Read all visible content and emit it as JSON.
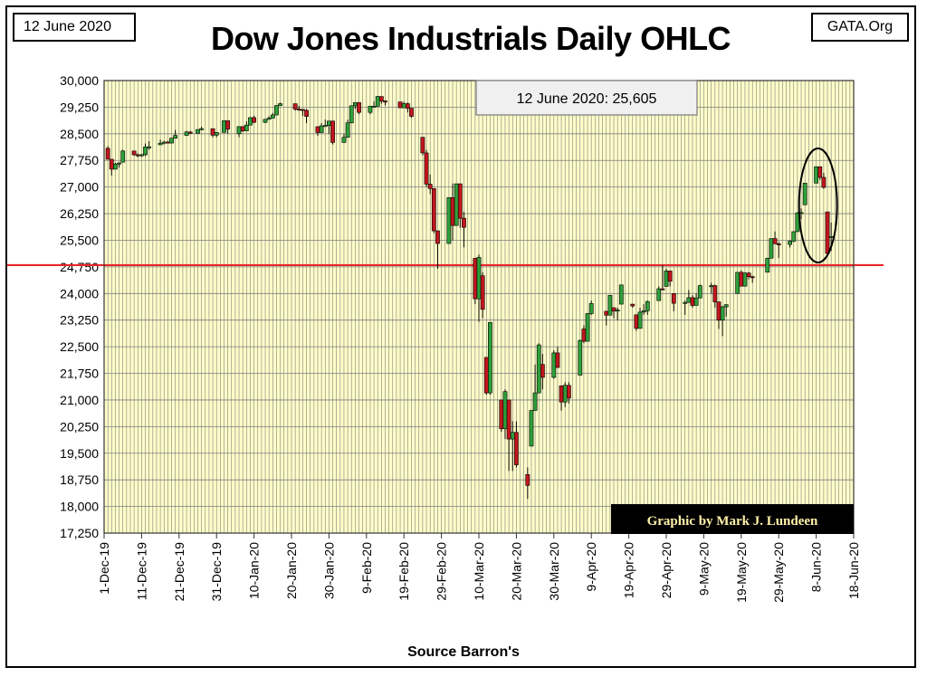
{
  "header": {
    "date_label": "12 June 2020",
    "site_label": "GATA.Org",
    "title": "Dow Jones Industrials Daily OHLC"
  },
  "annotation": {
    "value_box": "12 June 2020: 25,605",
    "credit": "Graphic by Mark J. Lundeen",
    "source": "Source Barron's"
  },
  "colors": {
    "plot_bg": "#FFFDC8",
    "grid": "#7f7f7f",
    "up": "#2e9e3a",
    "down": "#c0161d",
    "ref_line": "#e8262a",
    "credit_bg": "#000000",
    "credit_text": "#fff2a8"
  },
  "chart_data": {
    "type": "candlestick",
    "title": "Dow Jones Industrials Daily OHLC",
    "xlabel": "",
    "ylabel": "",
    "ylim": [
      17250,
      30000
    ],
    "yticks": [
      "30,000",
      "29,250",
      "28,500",
      "27,750",
      "27,000",
      "26,250",
      "25,500",
      "24,750",
      "24,000",
      "23,250",
      "22,500",
      "21,750",
      "21,000",
      "20,250",
      "19,500",
      "18,750",
      "18,000",
      "17,250"
    ],
    "xticks": [
      "1-Dec-19",
      "11-Dec-19",
      "21-Dec-19",
      "31-Dec-19",
      "10-Jan-20",
      "20-Jan-20",
      "30-Jan-20",
      "9-Feb-20",
      "19-Feb-20",
      "29-Feb-20",
      "10-Mar-20",
      "20-Mar-20",
      "30-Mar-20",
      "9-Apr-20",
      "19-Apr-20",
      "29-Apr-20",
      "9-May-20",
      "19-May-20",
      "29-May-20",
      "8-Jun-20",
      "18-Jun-20"
    ],
    "xlim": [
      "2019-12-01",
      "2020-06-18"
    ],
    "reference_line": 24800,
    "grid": true,
    "highlight": "ellipse around 4-Jun-20 to 12-Jun-20",
    "candles": [
      [
        "2019-12-02",
        28091,
        28149,
        27783,
        27783
      ],
      [
        "2019-12-03",
        27783,
        27783,
        27325,
        27503
      ],
      [
        "2019-12-04",
        27503,
        27680,
        27503,
        27650
      ],
      [
        "2019-12-05",
        27650,
        27700,
        27550,
        27677
      ],
      [
        "2019-12-06",
        27700,
        28050,
        27700,
        28015
      ],
      [
        "2019-12-09",
        28015,
        28015,
        27880,
        27909
      ],
      [
        "2019-12-10",
        27909,
        27950,
        27840,
        27881
      ],
      [
        "2019-12-11",
        27881,
        27930,
        27850,
        27911
      ],
      [
        "2019-12-12",
        27911,
        28225,
        27870,
        28132
      ],
      [
        "2019-12-13",
        28132,
        28290,
        28050,
        28135
      ],
      [
        "2019-12-16",
        28190,
        28337,
        28190,
        28235
      ],
      [
        "2019-12-17",
        28235,
        28300,
        28200,
        28267
      ],
      [
        "2019-12-18",
        28267,
        28300,
        28230,
        28239
      ],
      [
        "2019-12-19",
        28239,
        28376,
        28230,
        28376
      ],
      [
        "2019-12-20",
        28376,
        28608,
        28376,
        28455
      ],
      [
        "2019-12-23",
        28455,
        28582,
        28455,
        28551
      ],
      [
        "2019-12-24",
        28551,
        28576,
        28500,
        28515
      ],
      [
        "2019-12-26",
        28515,
        28621,
        28515,
        28621
      ],
      [
        "2019-12-27",
        28621,
        28701,
        28600,
        28645
      ],
      [
        "2019-12-30",
        28645,
        28645,
        28400,
        28462
      ],
      [
        "2019-12-31",
        28462,
        28538,
        28400,
        28538
      ],
      [
        "2020-01-02",
        28538,
        28872,
        28538,
        28868
      ],
      [
        "2020-01-03",
        28868,
        28868,
        28500,
        28634
      ],
      [
        "2020-01-06",
        28500,
        28708,
        28400,
        28703
      ],
      [
        "2020-01-07",
        28703,
        28710,
        28550,
        28583
      ],
      [
        "2020-01-08",
        28583,
        28850,
        28583,
        28745
      ],
      [
        "2020-01-09",
        28745,
        28970,
        28745,
        28956
      ],
      [
        "2020-01-10",
        28956,
        29009,
        28800,
        28824
      ],
      [
        "2020-01-13",
        28824,
        28910,
        28800,
        28907
      ],
      [
        "2020-01-14",
        28907,
        28997,
        28900,
        28940
      ],
      [
        "2020-01-15",
        28940,
        29090,
        28940,
        29030
      ],
      [
        "2020-01-16",
        29030,
        29300,
        29030,
        29297
      ],
      [
        "2020-01-17",
        29297,
        29373,
        29290,
        29348
      ],
      [
        "2020-01-21",
        29348,
        29348,
        29150,
        29196
      ],
      [
        "2020-01-22",
        29196,
        29290,
        29150,
        29186
      ],
      [
        "2020-01-23",
        29186,
        29200,
        29000,
        29160
      ],
      [
        "2020-01-24",
        29160,
        29200,
        28800,
        28990
      ],
      [
        "2020-01-27",
        28700,
        28700,
        28440,
        28535
      ],
      [
        "2020-01-28",
        28535,
        28800,
        28535,
        28723
      ],
      [
        "2020-01-29",
        28723,
        28900,
        28700,
        28734
      ],
      [
        "2020-01-30",
        28734,
        28859,
        28500,
        28859
      ],
      [
        "2020-01-31",
        28859,
        28859,
        28200,
        28256
      ],
      [
        "2020-02-03",
        28256,
        28500,
        28256,
        28400
      ],
      [
        "2020-02-04",
        28400,
        28900,
        28400,
        28807
      ],
      [
        "2020-02-05",
        28807,
        29290,
        28807,
        29290
      ],
      [
        "2020-02-06",
        29290,
        29380,
        29200,
        29379
      ],
      [
        "2020-02-07",
        29379,
        29379,
        29050,
        29103
      ],
      [
        "2020-02-10",
        29103,
        29277,
        29050,
        29276
      ],
      [
        "2020-02-11",
        29276,
        29415,
        29250,
        29276
      ],
      [
        "2020-02-12",
        29276,
        29568,
        29276,
        29551
      ],
      [
        "2020-02-13",
        29551,
        29551,
        29350,
        29424
      ],
      [
        "2020-02-14",
        29424,
        29450,
        29300,
        29398
      ],
      [
        "2020-02-18",
        29398,
        29400,
        29250,
        29233
      ],
      [
        "2020-02-19",
        29233,
        29400,
        29233,
        29348
      ],
      [
        "2020-02-20",
        29348,
        29380,
        29100,
        29220
      ],
      [
        "2020-02-21",
        29220,
        29220,
        28950,
        28992
      ],
      [
        "2020-02-24",
        28402,
        28402,
        27900,
        27961
      ],
      [
        "2020-02-25",
        27961,
        28050,
        27000,
        27081
      ],
      [
        "2020-02-26",
        27081,
        27350,
        26800,
        26957
      ],
      [
        "2020-02-27",
        26957,
        26957,
        25700,
        25766
      ],
      [
        "2020-02-28",
        25766,
        25766,
        24700,
        25409
      ],
      [
        "2020-03-02",
        25409,
        26706,
        25400,
        26703
      ],
      [
        "2020-03-03",
        26703,
        27100,
        25500,
        25917
      ],
      [
        "2020-03-04",
        25917,
        27091,
        25917,
        27091
      ],
      [
        "2020-03-05",
        27091,
        27091,
        25850,
        26121
      ],
      [
        "2020-03-06",
        26121,
        26300,
        25300,
        25864
      ],
      [
        "2020-03-09",
        24992,
        24992,
        23700,
        23851
      ],
      [
        "2020-03-10",
        23851,
        25100,
        23200,
        25018
      ],
      [
        "2020-03-11",
        24500,
        24600,
        23300,
        23553
      ],
      [
        "2020-03-12",
        22200,
        22200,
        21150,
        21200
      ],
      [
        "2020-03-13",
        21200,
        23190,
        21150,
        23186
      ],
      [
        "2020-03-16",
        21000,
        21000,
        20100,
        20189
      ],
      [
        "2020-03-17",
        20189,
        21300,
        19900,
        21237
      ],
      [
        "2020-03-18",
        21000,
        21000,
        19000,
        19899
      ],
      [
        "2020-03-19",
        19899,
        20400,
        19000,
        20087
      ],
      [
        "2020-03-20",
        20087,
        20400,
        19100,
        19174
      ],
      [
        "2020-03-23",
        18900,
        19100,
        18213,
        18592
      ],
      [
        "2020-03-24",
        19700,
        20705,
        19700,
        20705
      ],
      [
        "2020-03-25",
        20705,
        22000,
        20705,
        21200
      ],
      [
        "2020-03-26",
        21200,
        22600,
        21200,
        22552
      ],
      [
        "2020-03-27",
        22000,
        22300,
        21300,
        21637
      ],
      [
        "2020-03-30",
        21637,
        22400,
        21600,
        22327
      ],
      [
        "2020-03-31",
        22327,
        22500,
        21900,
        21917
      ],
      [
        "2020-04-01",
        21400,
        21400,
        20700,
        20943
      ],
      [
        "2020-04-02",
        20943,
        21500,
        20800,
        21413
      ],
      [
        "2020-04-03",
        21413,
        21500,
        20900,
        21053
      ],
      [
        "2020-04-06",
        21700,
        22700,
        21700,
        22680
      ],
      [
        "2020-04-07",
        23000,
        23100,
        22600,
        22654
      ],
      [
        "2020-04-08",
        22654,
        23450,
        22654,
        23434
      ],
      [
        "2020-04-09",
        23434,
        23800,
        23400,
        23719
      ],
      [
        "2020-04-13",
        23500,
        23500,
        23100,
        23390
      ],
      [
        "2020-04-14",
        23390,
        23950,
        23390,
        23949
      ],
      [
        "2020-04-15",
        23600,
        23600,
        23300,
        23504
      ],
      [
        "2020-04-16",
        23504,
        23600,
        23250,
        23537
      ],
      [
        "2020-04-17",
        23700,
        24200,
        23700,
        24242
      ],
      [
        "2020-04-20",
        23700,
        23700,
        23600,
        23650
      ],
      [
        "2020-04-21",
        23400,
        23400,
        22950,
        23018
      ],
      [
        "2020-04-22",
        23018,
        23600,
        23018,
        23475
      ],
      [
        "2020-04-23",
        23475,
        23700,
        23400,
        23515
      ],
      [
        "2020-04-24",
        23515,
        23800,
        23400,
        23775
      ],
      [
        "2020-04-27",
        23800,
        24200,
        23800,
        24133
      ],
      [
        "2020-04-28",
        24133,
        24800,
        24100,
        24101
      ],
      [
        "2020-04-29",
        24200,
        24700,
        24200,
        24634
      ],
      [
        "2020-04-30",
        24634,
        24634,
        24200,
        24345
      ],
      [
        "2020-05-01",
        24000,
        24000,
        23500,
        23724
      ],
      [
        "2020-05-04",
        23724,
        23800,
        23400,
        23749
      ],
      [
        "2020-05-05",
        23749,
        24100,
        23749,
        23883
      ],
      [
        "2020-05-06",
        23883,
        23950,
        23600,
        23664
      ],
      [
        "2020-05-07",
        23664,
        24000,
        23664,
        23875
      ],
      [
        "2020-05-08",
        23875,
        24250,
        23875,
        24221
      ],
      [
        "2020-05-11",
        24221,
        24300,
        24000,
        24222
      ],
      [
        "2020-05-12",
        24222,
        24250,
        23600,
        23764
      ],
      [
        "2020-05-13",
        23764,
        23764,
        23000,
        23248
      ],
      [
        "2020-05-14",
        23248,
        23650,
        22800,
        23625
      ],
      [
        "2020-05-15",
        23625,
        23700,
        23350,
        23685
      ],
      [
        "2020-05-18",
        24000,
        24600,
        24000,
        24597
      ],
      [
        "2020-05-19",
        24597,
        24650,
        24200,
        24207
      ],
      [
        "2020-05-20",
        24207,
        24600,
        24207,
        24576
      ],
      [
        "2020-05-21",
        24576,
        24600,
        24400,
        24474
      ],
      [
        "2020-05-22",
        24474,
        24500,
        24300,
        24465
      ],
      [
        "2020-05-26",
        24600,
        25000,
        24600,
        24995
      ],
      [
        "2020-05-27",
        24995,
        25550,
        24995,
        25548
      ],
      [
        "2020-05-28",
        25548,
        25750,
        25400,
        25401
      ],
      [
        "2020-05-29",
        25401,
        25450,
        25000,
        25383
      ],
      [
        "2020-06-01",
        25383,
        25500,
        25300,
        25475
      ],
      [
        "2020-06-02",
        25475,
        25750,
        25450,
        25742
      ],
      [
        "2020-06-03",
        25742,
        26300,
        25742,
        26270
      ],
      [
        "2020-06-04",
        26270,
        26400,
        26100,
        26281
      ],
      [
        "2020-06-05",
        26500,
        27110,
        26500,
        27110
      ],
      [
        "2020-06-08",
        27110,
        27580,
        27110,
        27572
      ],
      [
        "2020-06-09",
        27572,
        27572,
        27200,
        27272
      ],
      [
        "2020-06-10",
        27272,
        27400,
        26950,
        26990
      ],
      [
        "2020-06-11",
        26300,
        26300,
        25100,
        25128
      ],
      [
        "2020-06-12",
        25600,
        26000,
        25200,
        25605
      ]
    ]
  }
}
